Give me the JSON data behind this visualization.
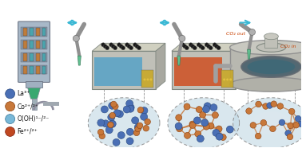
{
  "bg_color": "#ffffff",
  "legend_items": [
    {
      "label": "La³⁺",
      "color": "#4a6fb5",
      "border": "#2a4a80"
    },
    {
      "label": "Co²⁺/²⁺",
      "color": "#c8783a",
      "border": "#8a4010"
    },
    {
      "label": "O(OH)¹⁻/²⁻",
      "color": "#78b8d8",
      "border": "#3a7898"
    },
    {
      "label": "Fe²⁺/²⁺",
      "color": "#c04820",
      "border": "#802010"
    }
  ],
  "arrow_color": "#3ab8d4",
  "co2_out_text": "CO₂ out",
  "co2_in_text": "CO₂ in",
  "co2_color": "#c84000",
  "reactor_col_color": "#b0c8d8",
  "box_reactor_body": "#c0c0b8",
  "box_blue_fill": "#50a0c8",
  "box_red_fill": "#d04818",
  "furnace_body": "#b8b8b0",
  "furnace_inner": "#506070",
  "well_color": "#181818",
  "strip_color": "#c8a828",
  "robot_arm_color": "#909090",
  "robot_tip_color": "#60c090",
  "circle_bg": "#b8d0dc",
  "circle_border": "#909090",
  "mol_blue": "#4a6fb5",
  "mol_orange": "#c8783a",
  "mol_blue_border": "#2a4a80",
  "mol_orange_border": "#8a4010",
  "network_line_color": "#c8783a"
}
